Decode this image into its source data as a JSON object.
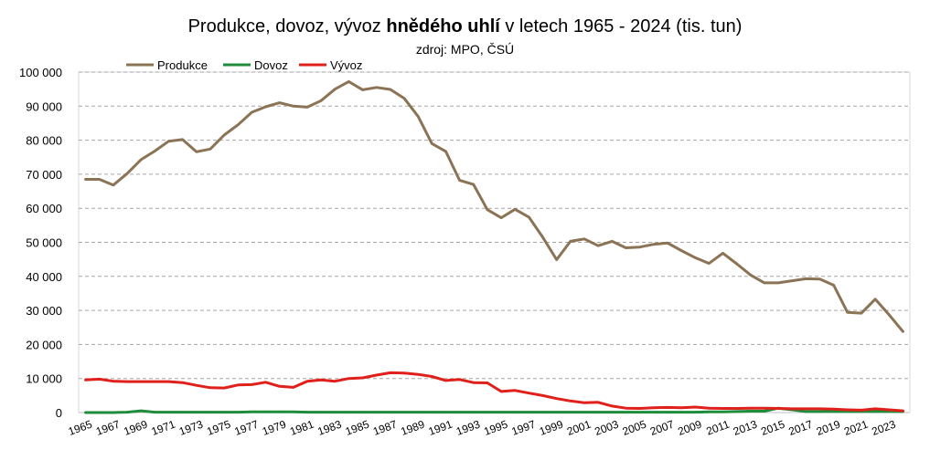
{
  "chart_data": {
    "type": "line",
    "title_pre": "Produkce, dovoz, vývoz ",
    "title_bold": "hnědého uhlí",
    "title_post": " v letech 1965 - 2024 (tis. tun)",
    "subtitle": "zdroj: MPO, ČSÚ",
    "ylim": [
      0,
      100000
    ],
    "y_ticks": [
      "0",
      "10 000",
      "20 000",
      "30 000",
      "40 000",
      "50 000",
      "60 000",
      "70 000",
      "80 000",
      "90 000",
      "100 000"
    ],
    "x": [
      1965,
      1966,
      1967,
      1968,
      1969,
      1970,
      1971,
      1972,
      1973,
      1974,
      1975,
      1976,
      1977,
      1978,
      1979,
      1980,
      1981,
      1982,
      1983,
      1984,
      1985,
      1986,
      1987,
      1988,
      1989,
      1990,
      1991,
      1992,
      1993,
      1994,
      1995,
      1996,
      1997,
      1998,
      1999,
      2000,
      2001,
      2002,
      2003,
      2004,
      2005,
      2006,
      2007,
      2008,
      2009,
      2010,
      2011,
      2012,
      2013,
      2014,
      2015,
      2016,
      2017,
      2018,
      2019,
      2020,
      2021,
      2022,
      2023,
      2024
    ],
    "x_tick_labels": [
      "1965",
      "1967",
      "1969",
      "1971",
      "1973",
      "1975",
      "1977",
      "1979",
      "1981",
      "1983",
      "1985",
      "1987",
      "1989",
      "1991",
      "1993",
      "1995",
      "1997",
      "1999",
      "2001",
      "2003",
      "2005",
      "2007",
      "2009",
      "2011",
      "2013",
      "2015",
      "2017",
      "2019",
      "2021",
      "2023"
    ],
    "grid": true,
    "legend_position": "top-left",
    "series": [
      {
        "name": "Produkce",
        "color": "#8B7355",
        "values": [
          68500,
          68500,
          66800,
          70200,
          74300,
          76800,
          79700,
          80200,
          76600,
          77400,
          81500,
          84500,
          88200,
          89800,
          91000,
          90000,
          89700,
          91600,
          95000,
          97200,
          94800,
          95500,
          94900,
          92300,
          87000,
          79000,
          76700,
          68200,
          67000,
          59600,
          57200,
          59700,
          57400,
          51500,
          44900,
          50300,
          51000,
          49000,
          50300,
          48400,
          48600,
          49400,
          49800,
          47600,
          45500,
          43800,
          46800,
          43700,
          40400,
          38100,
          38100,
          38700,
          39300,
          39200,
          37400,
          29400,
          29200,
          33300,
          28700,
          23800
        ]
      },
      {
        "name": "Dovoz",
        "color": "#1E8C3A",
        "values": [
          0,
          0,
          0,
          100,
          500,
          100,
          100,
          100,
          100,
          100,
          100,
          100,
          200,
          200,
          200,
          200,
          100,
          100,
          100,
          100,
          100,
          100,
          100,
          100,
          100,
          100,
          100,
          100,
          100,
          100,
          100,
          100,
          100,
          100,
          100,
          100,
          100,
          100,
          100,
          100,
          100,
          100,
          100,
          100,
          100,
          200,
          200,
          300,
          400,
          400,
          1300,
          800,
          300,
          300,
          300,
          300,
          300,
          300,
          300,
          300
        ]
      },
      {
        "name": "Vývoz",
        "color": "#E0201B",
        "values": [
          9600,
          9800,
          9200,
          9100,
          9100,
          9100,
          9100,
          8800,
          8000,
          7300,
          7200,
          8100,
          8200,
          8900,
          7700,
          7400,
          9200,
          9600,
          9200,
          10000,
          10200,
          11000,
          11700,
          11600,
          11200,
          10600,
          9400,
          9700,
          8800,
          8700,
          6200,
          6500,
          5700,
          5000,
          4100,
          3400,
          2900,
          3000,
          1900,
          1300,
          1200,
          1400,
          1500,
          1400,
          1600,
          1300,
          1200,
          1200,
          1300,
          1300,
          1200,
          1100,
          1100,
          1100,
          1000,
          800,
          700,
          1100,
          800,
          500
        ]
      }
    ]
  }
}
